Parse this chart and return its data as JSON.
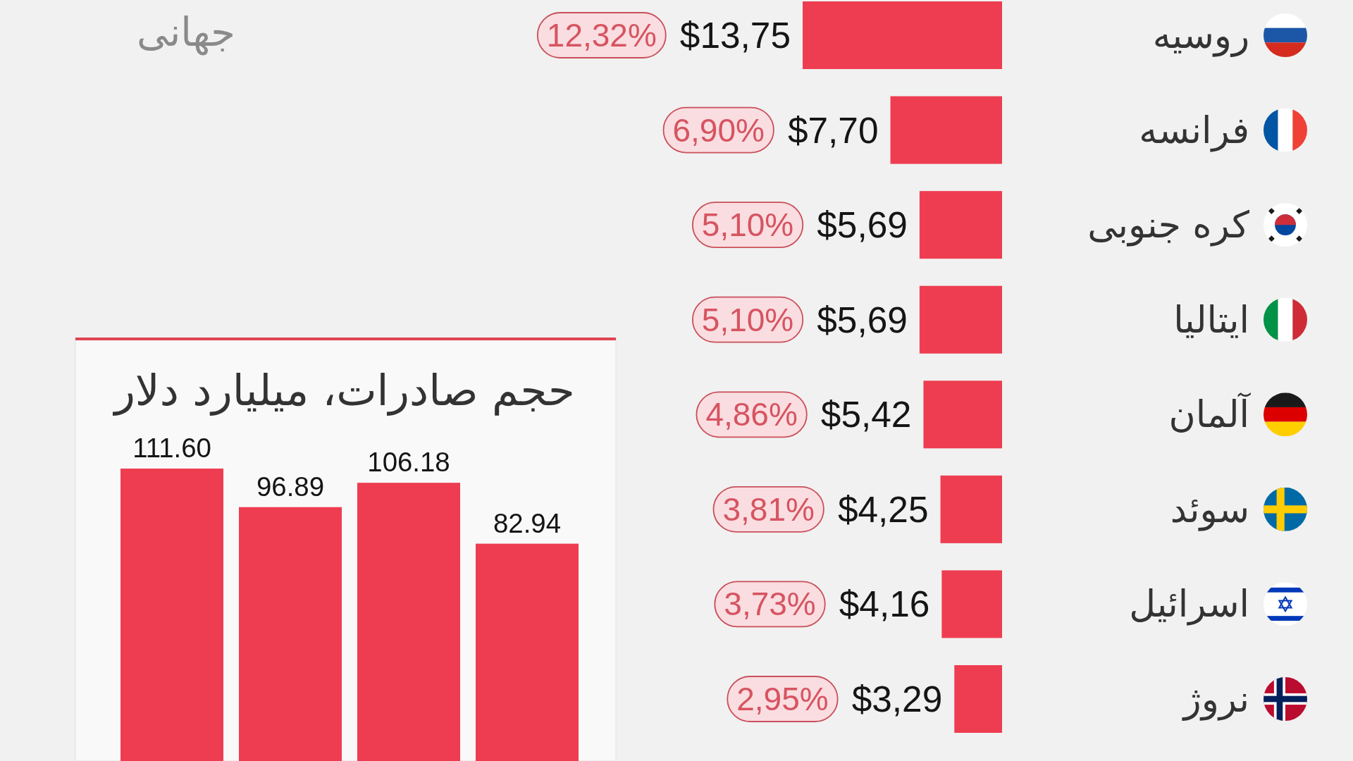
{
  "chart_data": [
    {
      "type": "bar",
      "orientation": "horizontal",
      "categories": [
        "روسیه",
        "فرانسه",
        "کره جنوبی",
        "ایتالیا",
        "آلمان",
        "سوئد",
        "اسرائیل",
        "نروژ"
      ],
      "values": [
        13.75,
        7.7,
        5.69,
        5.69,
        5.42,
        4.25,
        4.16,
        3.29
      ],
      "value_labels": [
        "$13,75",
        "$7,70",
        "$5,69",
        "$5,69",
        "$5,42",
        "$4,25",
        "$4,16",
        "$3,29"
      ],
      "color": "#ee3d50",
      "tick_labels": "y",
      "annotations": [
        "12,32%",
        "6,90%",
        "5,10%",
        "5,10%",
        "4,86%",
        "3,81%",
        "3,73%",
        "2,95%",
        "جهانی"
      ]
    },
    {
      "type": "bar",
      "title": "حجم صادرات، میلیارد دلار",
      "categories": [
        null,
        null,
        null,
        null
      ],
      "values": [
        111.6,
        96.89,
        106.18,
        82.94
      ],
      "value_labels": [
        "111.60",
        "96.89",
        "106.18",
        "82.94"
      ],
      "color": "#ee3d50",
      "tick_labels": false
    }
  ]
}
